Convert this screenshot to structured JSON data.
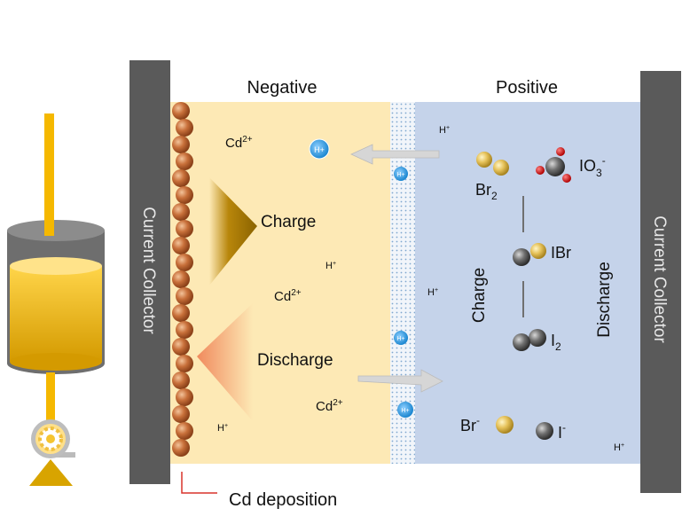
{
  "regions": {
    "negative": "Negative",
    "positive": "Positive",
    "left_collector": "Current Collector",
    "right_collector": "Current Collector"
  },
  "negative_side": {
    "charge": "Charge",
    "discharge": "Discharge",
    "cd_ion": "Cd",
    "cd_charge": "2+",
    "proton": "H",
    "proton_charge": "+",
    "deposition": "Cd deposition"
  },
  "positive_side": {
    "br2": "Br",
    "br2_sub": "2",
    "io3": "IO",
    "io3_sub": "3",
    "io3_sup": "-",
    "ibr": "IBr",
    "i2": "I",
    "i2_sub": "2",
    "br_minus": "Br",
    "br_minus_sup": "-",
    "i_minus": "I",
    "i_minus_sup": "-",
    "charge": "Charge",
    "discharge": "Discharge"
  },
  "membrane_ion": "H+",
  "colors": {
    "negative_bg": "#fde9b5",
    "positive_bg": "#c5d3ea",
    "collector": "#5a5a5a",
    "cd_sphere": "#c8703a",
    "proton_blue": "#2f9be0",
    "electrolyte": "#f5b800",
    "charge_triangle": "#b8860b",
    "discharge_triangle": "#f2a07b",
    "deposition_line": "#d9342b"
  }
}
